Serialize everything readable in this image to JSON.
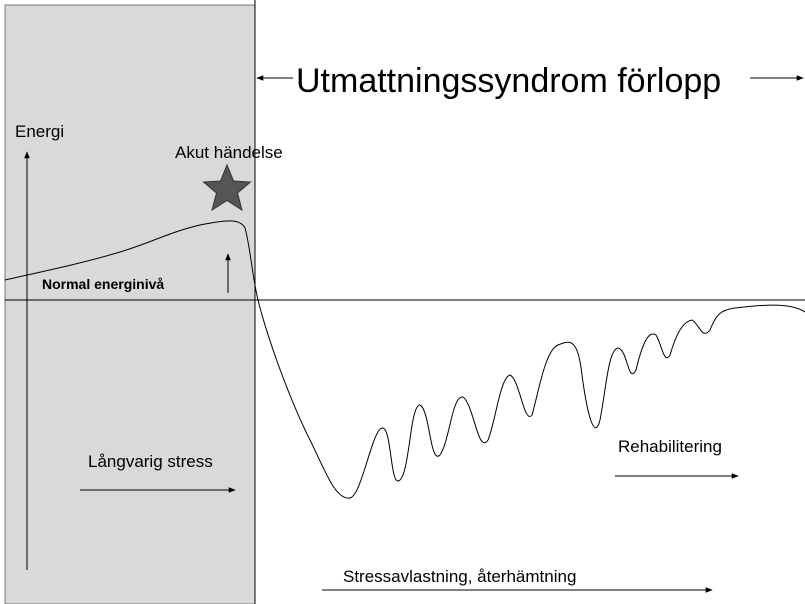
{
  "title": "Utmattningssyndrom förlopp",
  "axis_label": "Energi",
  "labels": {
    "acute_event": "Akut händelse",
    "normal_level": "Normal energinivå",
    "long_stress": "Långvarig stress",
    "rehabilitation": "Rehabilitering",
    "relief": "Stressavlastning, återhämtning"
  }
}
